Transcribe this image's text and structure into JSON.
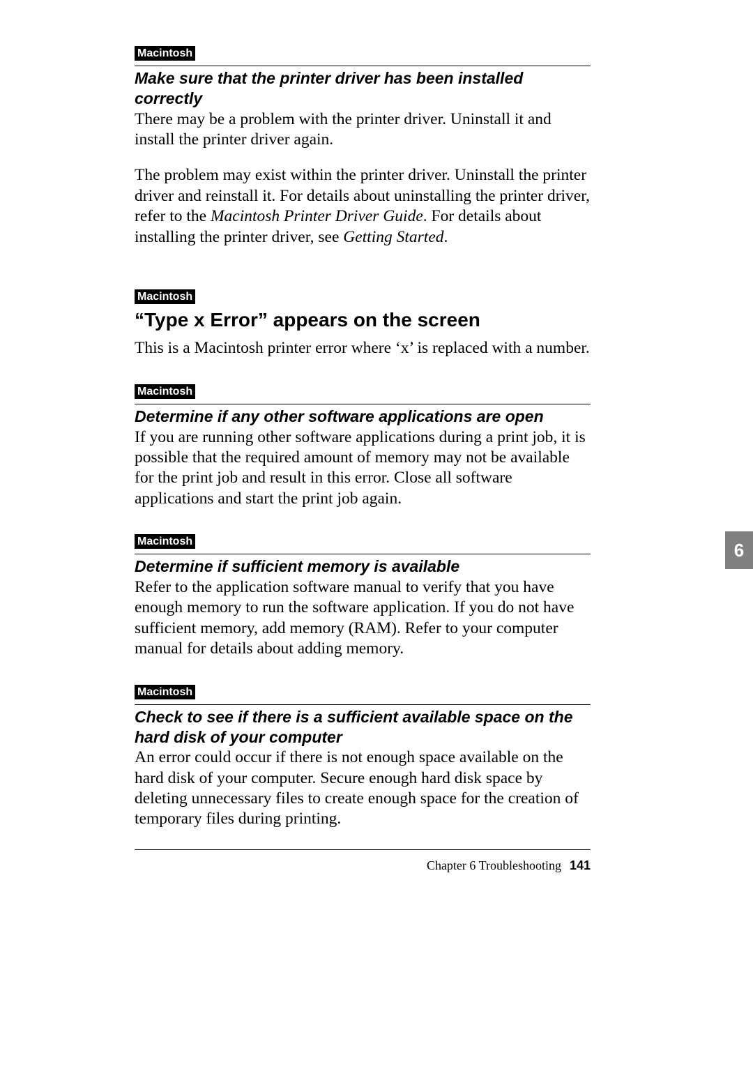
{
  "tag_label": "Macintosh",
  "sections": {
    "s1": {
      "subhead": "Make sure that the printer driver has been installed correctly",
      "p1": "There may be a problem with the printer driver. Uninstall it and install the printer driver again.",
      "p2_a": "The problem may exist within the printer driver.  Uninstall the printer driver and reinstall it. For details about uninstalling the printer driver, refer to the ",
      "p2_i1": "Macintosh Printer Driver Guide",
      "p2_b": ". For details about installing the printer driver, see ",
      "p2_i2": "Getting Started",
      "p2_c": "."
    },
    "s2": {
      "heading": "“Type x Error” appears on the screen",
      "p1": "This is a Macintosh printer error where ‘x’ is replaced with a number."
    },
    "s3": {
      "subhead": "Determine if any other software applications are open",
      "p1": "If you are running other software applications during a print job, it is possible that the required amount of memory may not be available for the print job and result in this error.  Close all software applications and start the print job again."
    },
    "s4": {
      "subhead": "Determine if sufficient memory is available",
      "p1": "Refer to the application software manual to verify that you have enough memory to run the software application. If you do not have sufficient memory, add memory (RAM).  Refer to your computer manual for details about adding memory."
    },
    "s5": {
      "subhead": "Check to see if there is a sufficient available space on the hard disk of your computer",
      "p1": "An error could occur if there is not enough space available on the hard disk of your computer. Secure enough hard disk space by deleting unnecessary files to create enough space for the creation of temporary files during printing."
    }
  },
  "side_tab": "6",
  "footer": {
    "chapter": "Chapter 6   Troubleshooting",
    "page": "141"
  }
}
